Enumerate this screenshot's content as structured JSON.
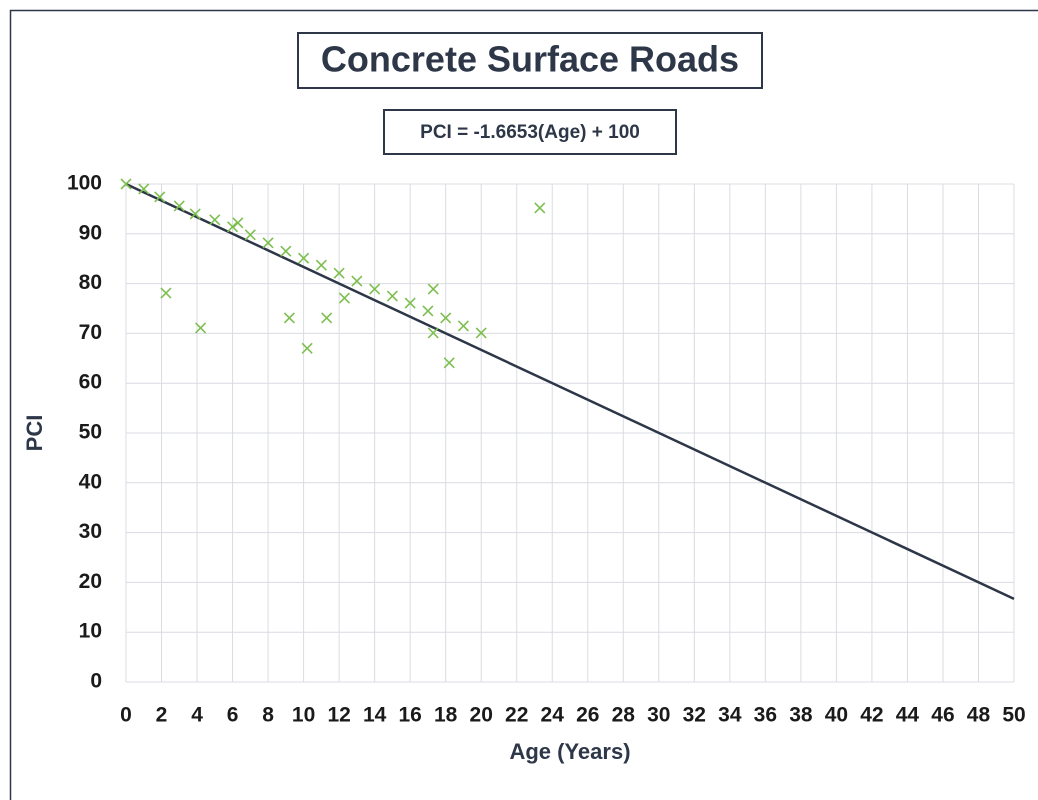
{
  "chart_data": {
    "type": "scatter",
    "title": "Concrete Surface Roads",
    "annotation": "PCI = -1.6653(Age) + 100",
    "x_label": "Age (Years)",
    "y_label": "PCI",
    "color": "#7dbf4f",
    "x": [
      0,
      1,
      1.9,
      2.25,
      3,
      3.9,
      4.2,
      5,
      6,
      6.3,
      7,
      8,
      9,
      9.2,
      10,
      10.2,
      11,
      11.3,
      12,
      12.3,
      13,
      14,
      15,
      16,
      17,
      17.3,
      17.3,
      18,
      18.2,
      19,
      20,
      23.3
    ],
    "values": [
      100,
      99,
      97.4,
      78.1,
      95.6,
      94,
      71.1,
      92.8,
      91.4,
      92.2,
      89.8,
      88.2,
      86.5,
      73.1,
      85.1,
      67,
      83.7,
      73.1,
      82.1,
      77.1,
      80.5,
      78.9,
      77.5,
      76.1,
      74.5,
      78.9,
      70.1,
      73.1,
      64.1,
      71.5,
      70.1,
      95.2
    ],
    "trendline": {
      "color": "#2d3748",
      "x": [
        0,
        50
      ],
      "values": [
        100,
        16.7
      ]
    },
    "xlim": [
      0,
      50
    ],
    "ylim": [
      0,
      100
    ],
    "xticks": [
      0,
      2,
      4,
      6,
      8,
      10,
      12,
      14,
      16,
      18,
      20,
      22,
      24,
      26,
      28,
      30,
      32,
      34,
      36,
      38,
      40,
      42,
      44,
      46,
      48,
      50
    ],
    "yticks": [
      0,
      10,
      20,
      30,
      40,
      50,
      60,
      70,
      80,
      90,
      100
    ],
    "grid": true
  }
}
